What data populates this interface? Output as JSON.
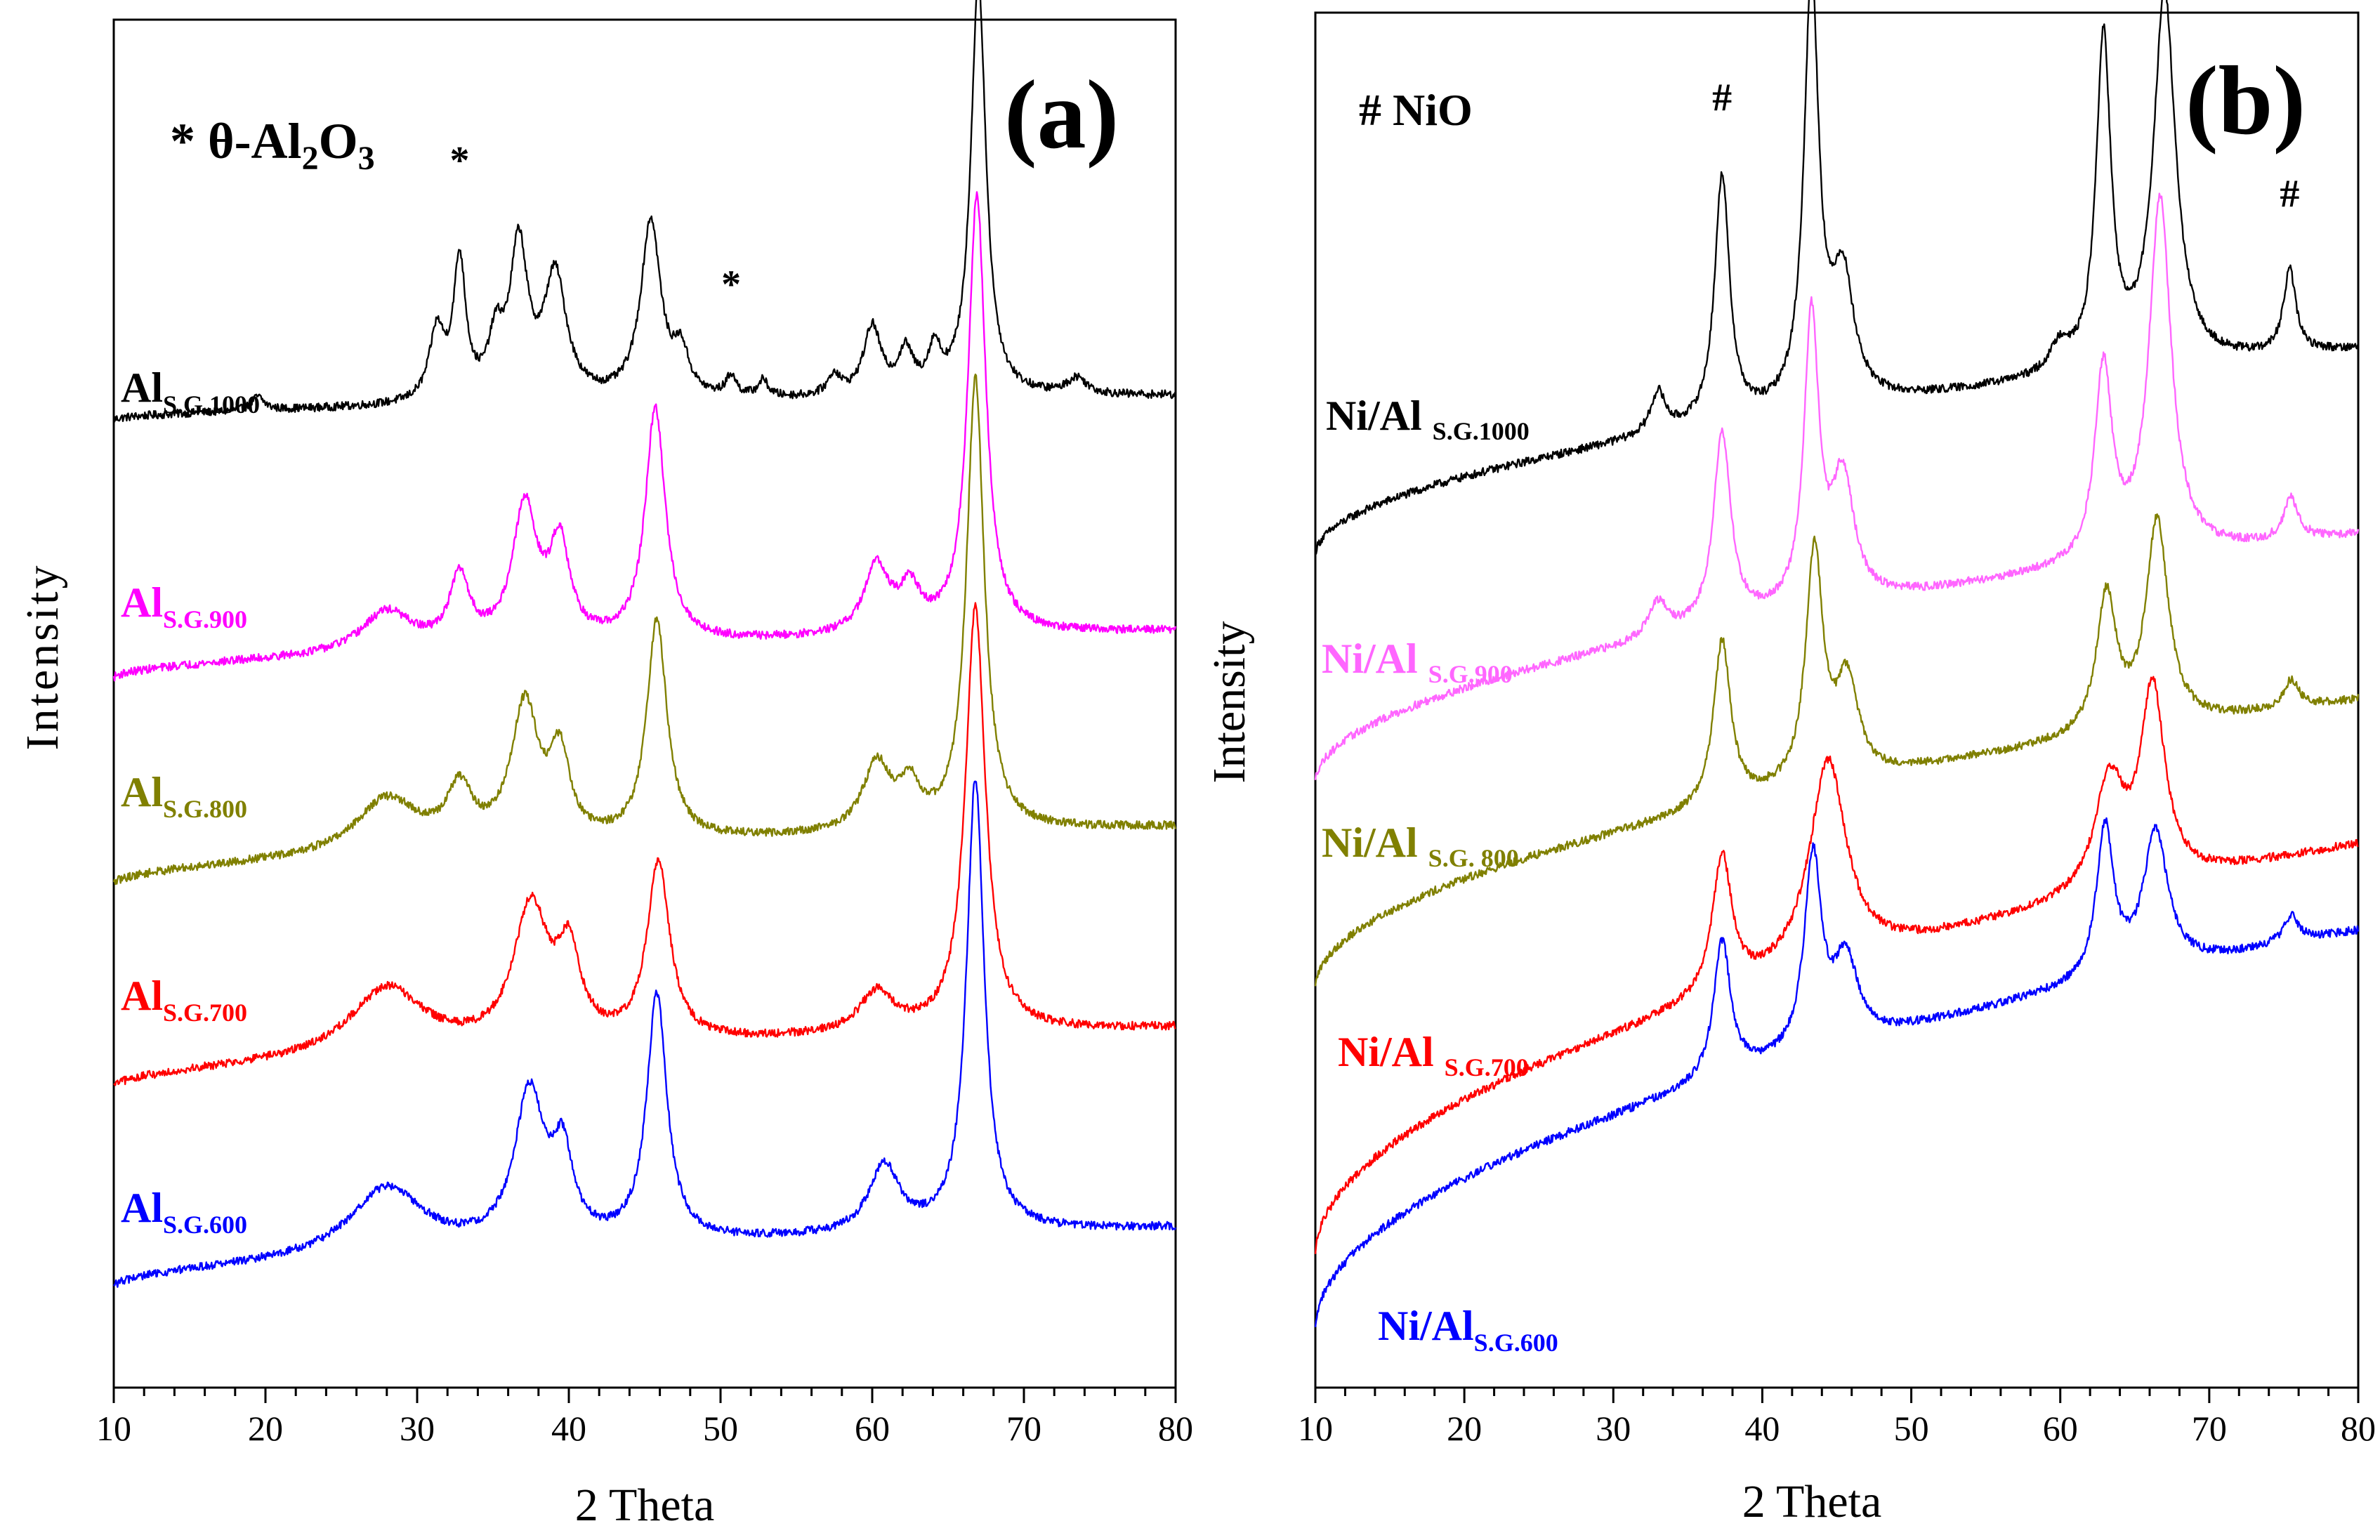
{
  "chart_data": [
    {
      "type": "line",
      "panel_label": "(a)",
      "xlabel": "2 Theta",
      "ylabel": "Intensity",
      "xlim": [
        10,
        80
      ],
      "xticks": [
        10,
        20,
        30,
        40,
        50,
        60,
        70,
        80
      ],
      "y_ticks_labeled": false,
      "legend_text": "* θ-Al2O3",
      "legend_parts": {
        "pre": "* θ-Al",
        "sub1": "2",
        "mid": "O",
        "sub2": "3"
      },
      "markers": [
        {
          "symbol": "*",
          "x": 32.8
        },
        {
          "symbol": "*",
          "x": 50.7
        }
      ],
      "peaks_note": "stacked offset diffractograms; values are relative intensity (0 = panel bottom, 1 = panel top)",
      "series": [
        {
          "name": "Al S.G.1000",
          "label_main": "Al",
          "label_sub": "S.G.1000",
          "color": "#000000",
          "baseline": 0.707,
          "slope": 0.018,
          "noise": 0.003,
          "peaks": [
            {
              "x": 19.5,
              "h": 0.01,
              "w": 0.5
            },
            {
              "x": 31.3,
              "h": 0.05,
              "w": 0.6
            },
            {
              "x": 32.8,
              "h": 0.1,
              "w": 0.5
            },
            {
              "x": 35.2,
              "h": 0.04,
              "w": 0.6
            },
            {
              "x": 36.7,
              "h": 0.11,
              "w": 0.7
            },
            {
              "x": 39.1,
              "h": 0.09,
              "w": 0.9
            },
            {
              "x": 45.4,
              "h": 0.13,
              "w": 0.8
            },
            {
              "x": 47.4,
              "h": 0.03,
              "w": 0.6
            },
            {
              "x": 50.7,
              "h": 0.015,
              "w": 0.4
            },
            {
              "x": 52.8,
              "h": 0.012,
              "w": 0.4
            },
            {
              "x": 57.5,
              "h": 0.015,
              "w": 0.5
            },
            {
              "x": 60.0,
              "h": 0.05,
              "w": 0.7
            },
            {
              "x": 62.2,
              "h": 0.03,
              "w": 0.6
            },
            {
              "x": 64.1,
              "h": 0.03,
              "w": 0.5
            },
            {
              "x": 67.0,
              "h": 0.305,
              "w": 0.6
            },
            {
              "x": 73.5,
              "h": 0.012,
              "w": 0.8
            }
          ]
        },
        {
          "name": "Al S.G.900",
          "label_main": "Al",
          "label_sub": "S.G.900",
          "color": "#ff00ff",
          "baseline": 0.518,
          "slope": 0.035,
          "noise": 0.003,
          "peaks": [
            {
              "x": 28.0,
              "h": 0.03,
              "w": 2.0
            },
            {
              "x": 32.8,
              "h": 0.05,
              "w": 0.8
            },
            {
              "x": 37.1,
              "h": 0.1,
              "w": 1.0
            },
            {
              "x": 39.4,
              "h": 0.07,
              "w": 0.8
            },
            {
              "x": 45.7,
              "h": 0.17,
              "w": 0.8
            },
            {
              "x": 60.3,
              "h": 0.05,
              "w": 1.0
            },
            {
              "x": 62.5,
              "h": 0.03,
              "w": 0.8
            },
            {
              "x": 66.9,
              "h": 0.32,
              "w": 0.7
            }
          ]
        },
        {
          "name": "Al S.G.800",
          "label_main": "Al",
          "label_sub": "S.G.800",
          "color": "#808000",
          "baseline": 0.367,
          "slope": 0.043,
          "noise": 0.003,
          "peaks": [
            {
              "x": 28.0,
              "h": 0.04,
              "w": 2.5
            },
            {
              "x": 32.8,
              "h": 0.04,
              "w": 1.0
            },
            {
              "x": 37.1,
              "h": 0.1,
              "w": 1.1
            },
            {
              "x": 39.4,
              "h": 0.06,
              "w": 0.8
            },
            {
              "x": 45.8,
              "h": 0.16,
              "w": 0.8
            },
            {
              "x": 60.3,
              "h": 0.05,
              "w": 1.1
            },
            {
              "x": 62.5,
              "h": 0.03,
              "w": 0.8
            },
            {
              "x": 66.8,
              "h": 0.33,
              "w": 0.7
            }
          ]
        },
        {
          "name": "Al S.G.700",
          "label_main": "Al",
          "label_sub": "S.G.700",
          "color": "#ff0000",
          "baseline": 0.218,
          "slope": 0.045,
          "noise": 0.003,
          "peaks": [
            {
              "x": 28.0,
              "h": 0.05,
              "w": 3.0
            },
            {
              "x": 37.5,
              "h": 0.1,
              "w": 1.4
            },
            {
              "x": 40.0,
              "h": 0.06,
              "w": 0.9
            },
            {
              "x": 45.9,
              "h": 0.13,
              "w": 0.9
            },
            {
              "x": 60.3,
              "h": 0.03,
              "w": 1.4
            },
            {
              "x": 66.8,
              "h": 0.31,
              "w": 0.8
            }
          ]
        },
        {
          "name": "Al S.G.600",
          "label_main": "Al",
          "label_sub": "S.G.600",
          "color": "#0000ff",
          "baseline": 0.072,
          "slope": 0.045,
          "noise": 0.003,
          "peaks": [
            {
              "x": 28.0,
              "h": 0.05,
              "w": 3.0
            },
            {
              "x": 37.4,
              "h": 0.11,
              "w": 1.2
            },
            {
              "x": 39.6,
              "h": 0.06,
              "w": 0.8
            },
            {
              "x": 45.8,
              "h": 0.18,
              "w": 0.8
            },
            {
              "x": 60.8,
              "h": 0.05,
              "w": 1.2
            },
            {
              "x": 66.8,
              "h": 0.33,
              "w": 0.7
            }
          ]
        }
      ]
    },
    {
      "type": "line",
      "panel_label": "(b)",
      "xlabel": "2 Theta",
      "ylabel": "Intensity",
      "xlim": [
        10,
        80
      ],
      "xticks": [
        10,
        20,
        30,
        40,
        50,
        60,
        70,
        80
      ],
      "y_ticks_labeled": false,
      "legend_text": "# NiO",
      "markers": [
        {
          "symbol": "#",
          "x": 37.3
        },
        {
          "symbol": "#",
          "x": 43.3
        },
        {
          "symbol": "#",
          "x": 62.9
        },
        {
          "symbol": "#",
          "x": 75.4
        }
      ],
      "series": [
        {
          "name": "Ni/Al S.G.1000",
          "label_main": "Ni/Al ",
          "label_sub": "S.G.1000",
          "color": "#000000",
          "baseline": 0.605,
          "slope": 0.15,
          "noise": 0.003,
          "peaks": [
            {
              "x": 33.0,
              "h": 0.03,
              "w": 0.6
            },
            {
              "x": 37.3,
              "h": 0.18,
              "w": 0.6
            },
            {
              "x": 43.3,
              "h": 0.31,
              "w": 0.6
            },
            {
              "x": 45.4,
              "h": 0.09,
              "w": 0.9
            },
            {
              "x": 60.0,
              "h": 0.02,
              "w": 0.8
            },
            {
              "x": 62.9,
              "h": 0.24,
              "w": 0.6
            },
            {
              "x": 67.0,
              "h": 0.27,
              "w": 0.9
            },
            {
              "x": 75.4,
              "h": 0.06,
              "w": 0.5
            }
          ]
        },
        {
          "name": "Ni/Al S.G.900",
          "label_main": "Ni/Al ",
          "label_sub": "S.G.900",
          "color": "#ff66ff",
          "baseline": 0.44,
          "slope": 0.18,
          "noise": 0.003,
          "peaks": [
            {
              "x": 33.0,
              "h": 0.025,
              "w": 0.8
            },
            {
              "x": 37.3,
              "h": 0.14,
              "w": 0.7
            },
            {
              "x": 43.3,
              "h": 0.21,
              "w": 0.6
            },
            {
              "x": 45.4,
              "h": 0.09,
              "w": 0.9
            },
            {
              "x": 62.9,
              "h": 0.14,
              "w": 0.7
            },
            {
              "x": 66.7,
              "h": 0.26,
              "w": 0.9
            },
            {
              "x": 75.5,
              "h": 0.03,
              "w": 0.6
            }
          ]
        },
        {
          "name": "Ni/Al S.G. 800",
          "label_main": "Ni/Al ",
          "label_sub": "S.G. 800",
          "color": "#808000",
          "baseline": 0.29,
          "slope": 0.21,
          "noise": 0.003,
          "peaks": [
            {
              "x": 37.3,
              "h": 0.12,
              "w": 0.7
            },
            {
              "x": 43.5,
              "h": 0.17,
              "w": 0.7
            },
            {
              "x": 45.7,
              "h": 0.07,
              "w": 0.9
            },
            {
              "x": 63.1,
              "h": 0.1,
              "w": 0.8
            },
            {
              "x": 66.5,
              "h": 0.15,
              "w": 0.9
            },
            {
              "x": 75.5,
              "h": 0.02,
              "w": 0.6
            }
          ]
        },
        {
          "name": "Ni/Al S.G.700",
          "label_main": "Ni/Al ",
          "label_sub": "S.G.700",
          "color": "#ff0000",
          "baseline": 0.095,
          "slope": 0.3,
          "noise": 0.003,
          "peaks": [
            {
              "x": 37.3,
              "h": 0.1,
              "w": 0.8
            },
            {
              "x": 44.4,
              "h": 0.15,
              "w": 1.5
            },
            {
              "x": 63.3,
              "h": 0.08,
              "w": 1.2
            },
            {
              "x": 66.2,
              "h": 0.14,
              "w": 1.0
            }
          ]
        },
        {
          "name": "Ni/Al S.G.600",
          "label_main": "Ni/Al",
          "label_sub": "S.G.600",
          "color": "#0000ff",
          "baseline": 0.042,
          "slope": 0.29,
          "noise": 0.003,
          "peaks": [
            {
              "x": 37.3,
              "h": 0.1,
              "w": 0.7
            },
            {
              "x": 43.4,
              "h": 0.14,
              "w": 0.7
            },
            {
              "x": 45.6,
              "h": 0.06,
              "w": 1.0
            },
            {
              "x": 63.0,
              "h": 0.11,
              "w": 0.7
            },
            {
              "x": 66.4,
              "h": 0.1,
              "w": 1.0
            },
            {
              "x": 75.5,
              "h": 0.02,
              "w": 0.6
            }
          ]
        }
      ]
    }
  ]
}
